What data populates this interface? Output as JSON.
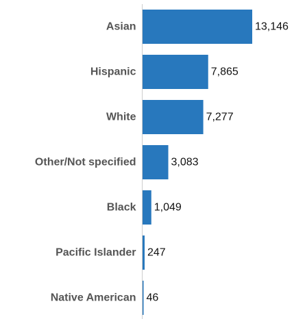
{
  "colors": {
    "bar": "#2878bd",
    "axis": "#cccccc",
    "category_text": "#555555",
    "value_text": "#111111"
  },
  "chart_data": {
    "type": "bar",
    "orientation": "horizontal",
    "categories": [
      "Asian",
      "Hispanic",
      "White",
      "Other/Not specified",
      "Black",
      "Pacific Islander",
      "Native American"
    ],
    "values": [
      13146,
      7865,
      7277,
      3083,
      1049,
      247,
      46
    ],
    "value_labels": [
      "13,146",
      "7,865",
      "7,277",
      "3,083",
      "1,049",
      "247",
      "46"
    ],
    "title": "",
    "xlabel": "",
    "ylabel": "",
    "xlim": [
      0,
      13146
    ],
    "grid": false,
    "legend": "none"
  }
}
